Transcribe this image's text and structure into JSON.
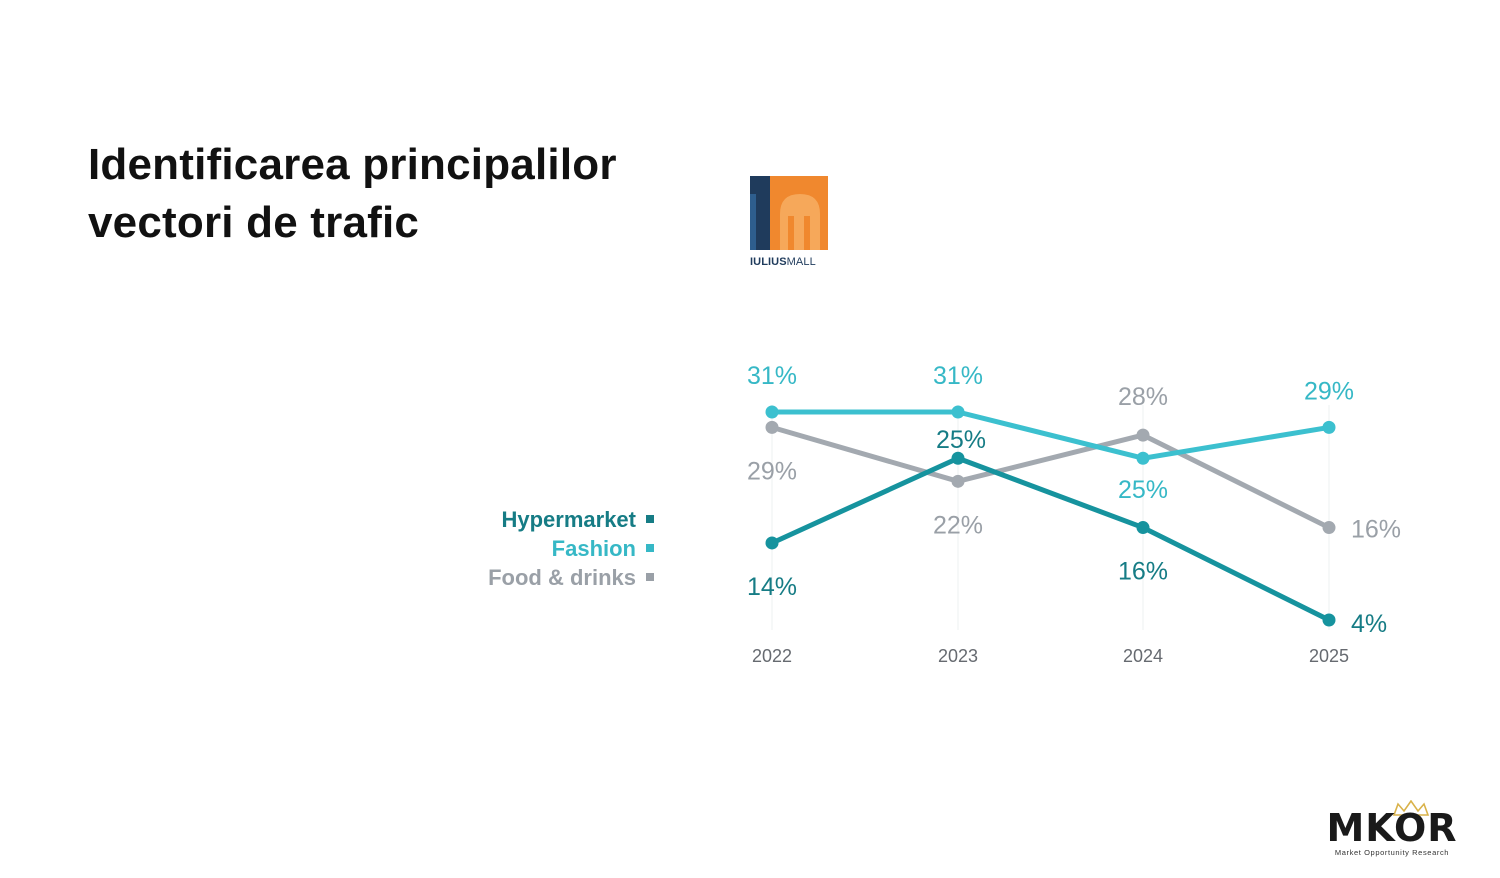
{
  "page": {
    "title_line1": "Identificarea principalilor",
    "title_line2": "vectori de trafic"
  },
  "logos": {
    "iulius": {
      "bold": "IULIUS",
      "light": "MALL",
      "colors": {
        "navy": "#1f3b5c",
        "orange": "#f0882e"
      }
    },
    "mkor": {
      "word": "MKOR",
      "tagline": "Market Opportunity Research",
      "crown_color": "#d9b24a"
    }
  },
  "chart_data": {
    "type": "line",
    "categories": [
      "2022",
      "2023",
      "2024",
      "2025"
    ],
    "ylim": [
      0,
      35
    ],
    "grid": false,
    "legend_placement": "left",
    "series": [
      {
        "name": "Hypermarket",
        "color": "#16939e",
        "label_color": "#167c85",
        "values": [
          14,
          25,
          16,
          4
        ],
        "labels": [
          "14%",
          "25%",
          "16%",
          "4%"
        ]
      },
      {
        "name": "Fashion",
        "color": "#3cc0cf",
        "label_color": "#36b8c6",
        "values": [
          31,
          31,
          25,
          29
        ],
        "labels": [
          "31%",
          "31%",
          "25%",
          "29%"
        ]
      },
      {
        "name": "Food & drinks",
        "color": "#a3a9b0",
        "label_color": "#9aa0a7",
        "values": [
          29,
          22,
          28,
          16
        ],
        "labels": [
          "29%",
          "22%",
          "28%",
          "16%"
        ]
      }
    ]
  }
}
